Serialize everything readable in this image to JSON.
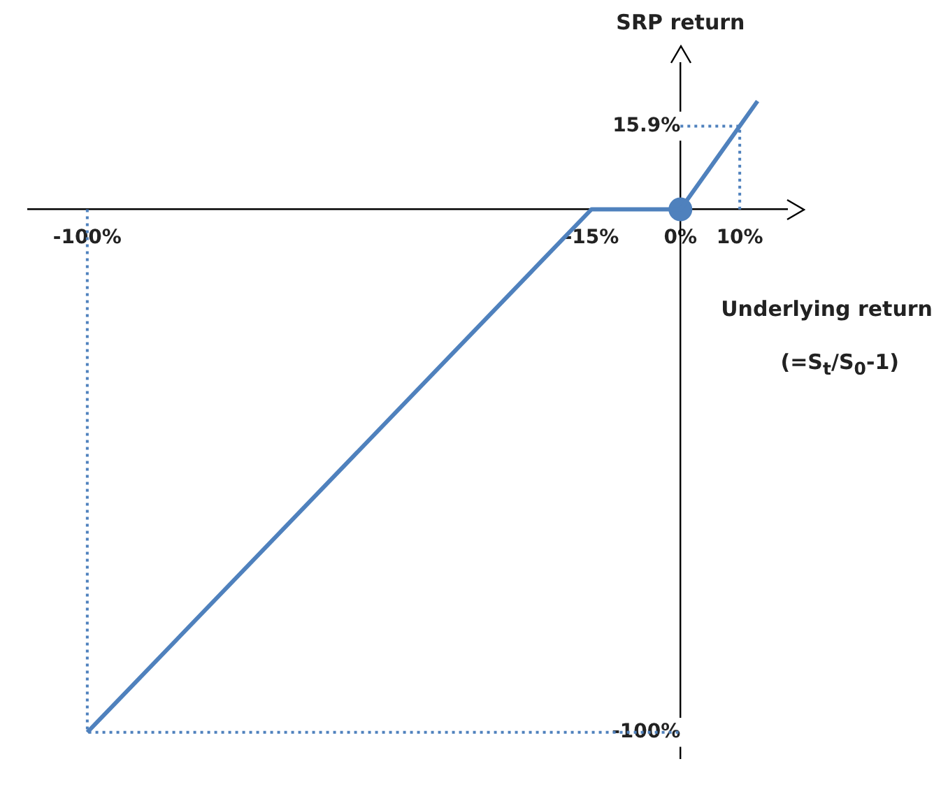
{
  "chart_data": {
    "type": "line",
    "xlabel": "Underlying return",
    "ylabel": "SRP return",
    "annotations": [
      "(=S$_{t}$/S$_{0}$-1)"
    ],
    "xlim": [
      -110,
      18
    ],
    "ylim": [
      -105,
      28
    ],
    "xticks": [
      {
        "value": -100,
        "label": "-100%"
      },
      {
        "value": -15,
        "label": "-15%"
      },
      {
        "value": 0,
        "label": "0%"
      },
      {
        "value": 10,
        "label": "10%"
      }
    ],
    "yticks": [
      {
        "value": -100,
        "label": "-100%"
      },
      {
        "value": 15.9,
        "label": "15.9%"
      }
    ],
    "grid": false,
    "legend": false,
    "series": [
      {
        "color": "#4f81bd",
        "x": [
          -100,
          -15,
          0,
          13
        ],
        "values": [
          -100,
          0,
          0,
          20.7
        ],
        "marker": "none",
        "line_style": "solid"
      },
      {
        "type": "line",
        "color": "#4f81bd",
        "x": [
          -100,
          -100,
          0
        ],
        "values": [
          0,
          -100,
          -100
        ],
        "marker": "none",
        "line_style": "dotted"
      },
      {
        "type": "line",
        "color": "#4f81bd",
        "x": [
          0,
          10,
          10
        ],
        "values": [
          15.9,
          15.9,
          0
        ],
        "marker": "none",
        "line_style": "dotted"
      },
      {
        "type": "scatter",
        "color": "#4f81bd",
        "x": [
          0
        ],
        "values": [
          0
        ],
        "marker": "circle"
      }
    ]
  }
}
